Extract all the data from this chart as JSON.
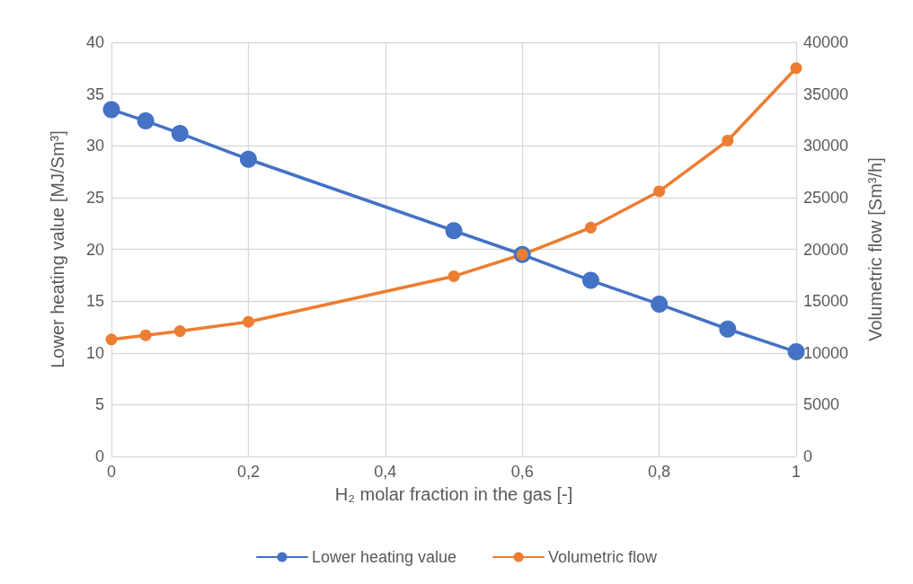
{
  "chart_data": {
    "type": "line",
    "xlabel": "H₂ molar fraction in the gas [-]",
    "ylabel": "Lower heating value [MJ/Sm³]",
    "y2label": "Volumetric flow [Sm³/h]",
    "x": [
      0,
      0.05,
      0.1,
      0.2,
      0.5,
      0.6,
      0.7,
      0.8,
      0.9,
      1
    ],
    "series": [
      {
        "name": "Lower heating value",
        "color": "#4472c4",
        "values": [
          33.5,
          32.4,
          31.2,
          28.7,
          21.8,
          19.5,
          17.0,
          14.7,
          12.3,
          10.1
        ]
      },
      {
        "name": "Volumetric flow",
        "color": "#ed7d31",
        "axis": "y2",
        "values": [
          11300,
          11700,
          12100,
          13000,
          17400,
          19500,
          22100,
          25600,
          30500,
          37500
        ]
      }
    ],
    "xlim": [
      0,
      1
    ],
    "xticks": [
      0,
      {
        "value": 0.2,
        "label": "0,2"
      },
      {
        "value": 0.4,
        "label": "0,4"
      },
      {
        "value": 0.6,
        "label": "0,6"
      },
      {
        "value": 0.8,
        "label": "0,8"
      },
      1
    ],
    "ylim": [
      0,
      40
    ],
    "yticks": [
      0,
      5,
      10,
      15,
      20,
      25,
      30,
      35,
      40
    ],
    "y2lim": [
      0,
      40000
    ],
    "y2ticks": [
      0,
      5000,
      10000,
      15000,
      20000,
      25000,
      30000,
      35000,
      40000
    ],
    "grid": true,
    "legend": "bottom",
    "marker": "circle",
    "line_style": "solid"
  }
}
